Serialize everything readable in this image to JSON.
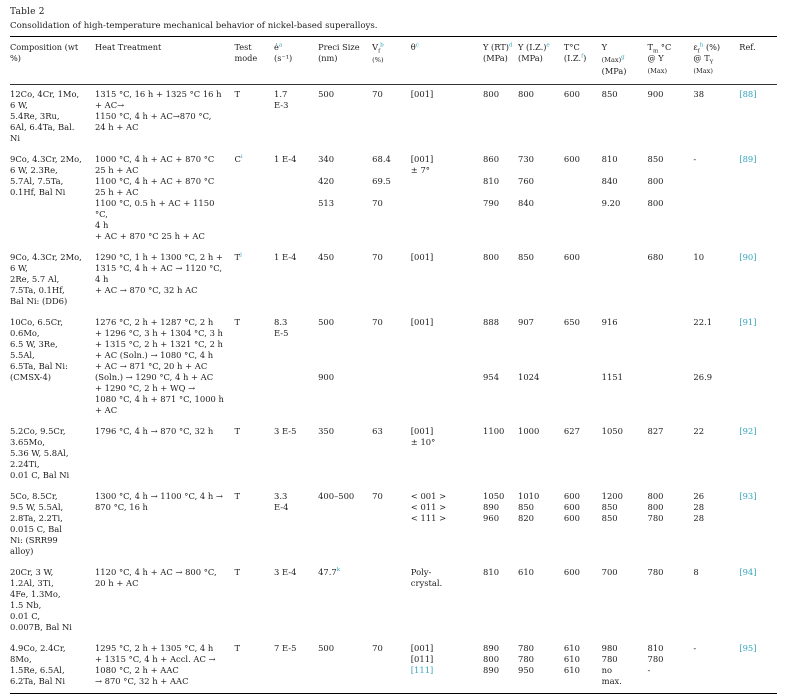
{
  "colors": {
    "link": "#35a5ba",
    "ink": "#1d1d1d"
  },
  "title": "Table 2",
  "caption": "Consolidation of high-temperature mechanical behavior of nickel-based superalloys.",
  "header": {
    "comp": "Composition (wt\n%)",
    "heat": "Heat Treatment",
    "mode": "Test\nmode",
    "rate": {
      "base": "ė",
      "sup": "a",
      "unit": "\n(s⁻¹)"
    },
    "size": "Preci Size\n(nm)",
    "vf": {
      "base": "V",
      "sub": "f",
      "sup": "b",
      "unit": "\n(%)"
    },
    "theta": {
      "base": "θ",
      "sup": "c"
    },
    "y_rt": {
      "base": "Y (RT)",
      "sup": "d",
      "unit": "\n(MPa)"
    },
    "y_iz": {
      "base": "Y (I.Z.)",
      "sup": "e",
      "unit": "\n(MPa)"
    },
    "t_iz": {
      "base": "T°C\n(I.Z.",
      "sup": "f",
      "tail": ")"
    },
    "y_max": {
      "base": "Y",
      "small": "\n(Max)",
      "sup": "g",
      "unit": "\n(MPa)"
    },
    "tm": {
      "base": "T",
      "sub": "m",
      "rest": " °C\n@ Y",
      "small": "\n(Max)"
    },
    "ef": {
      "base": "ε",
      "sub": "f",
      "sup": "h",
      "rest": " (%)",
      "rest2": "\n@ T",
      "sub2": "Y",
      "small": "\n(Max)"
    },
    "ref": "Ref."
  },
  "rows": [
    {
      "comp": "12Co, 4Cr, 1Mo,\n6 W,\n5.4Re, 3Ru,\n6Al, 6.4Ta, Bal.\nNi",
      "heat": "1315 °C, 16 h + 1325 °C 16 h\n+ AC→\n1150 °C, 4 h + AC→870 °C,\n24 h + AC",
      "mode": "T",
      "rate": "1.7\nE-3",
      "size": "500",
      "vf": "70",
      "theta": "[001]",
      "y_rt": "800",
      "y_iz": "800",
      "t_iz": "600",
      "y_max": "850",
      "tm": "900",
      "ef": "38",
      "ref": "[88]"
    },
    {
      "comp": "9Co, 4.3Cr, 2Mo,\n6 W, 2.3Re,\n5.7Al, 7.5Ta,\n0.1Hf, Bal Ni",
      "heat": "1000 °C, 4 h + AC + 870 °C\n25 h + AC\n1100 °C, 4 h + AC + 870 °C\n25 h + AC\n1100 °C, 0.5 h + AC + 1150 °C,\n4 h\n+ AC + 870 °C 25 h + AC",
      "mode": "C",
      "mode_sup": "i",
      "rate": "1 E-4",
      "size": "340\n\n420\n\n513",
      "vf": "68.4\n\n69.5\n\n70",
      "theta": "[001]\n± 7°",
      "y_rt": "860\n\n810\n\n790",
      "y_iz": "730\n\n760\n\n840",
      "t_iz": "600",
      "y_max": "810\n\n840\n\n9.20",
      "tm": "850\n\n800\n\n800",
      "ef": "-",
      "ref": "[89]"
    },
    {
      "comp": "9Co, 4.3Cr, 2Mo,\n6 W,\n2Re, 5.7 Al,\n7.5Ta, 0.1Hf,\nBal Ni: (DD6)",
      "heat": "1290 °C, 1 h + 1300 °C, 2 h +\n1315 °C, 4 h + AC → 1120 °C,\n4 h\n+ AC → 870 °C, 32 h AC",
      "mode": "T",
      "mode_sup": "j",
      "rate": "1 E-4",
      "size": "450",
      "vf": "70",
      "theta": "[001]",
      "y_rt": "800",
      "y_iz": "850",
      "t_iz": "600",
      "y_max": "",
      "tm": "680",
      "ef": "10",
      "ref": "[90]"
    },
    {
      "comp": "10Co, 6.5Cr,\n0.6Mo,\n6.5 W, 3Re,\n5.5Al,\n6.5Ta, Bal Ni:\n(CMSX-4)",
      "heat": "1276 °C, 2 h + 1287 °C, 2 h\n+ 1296 °C, 3 h + 1304 °C, 3 h\n+ 1315 °C, 2 h + 1321 °C, 2 h\n+ AC (Soln.) → 1080 °C, 4 h\n+ AC → 871 °C, 20 h + AC\n(Soln.) → 1290 °C, 4 h + AC\n+ 1290 °C, 2 h + WQ →\n1080 °C, 4 h + 871 °C, 1000 h\n+ AC",
      "mode": "T",
      "rate": "8.3\nE-5",
      "size": "500\n\n\n\n\n900",
      "vf": "70",
      "theta": "[001]",
      "y_rt": "888\n\n\n\n\n954",
      "y_iz": "907\n\n\n\n\n1024",
      "t_iz": "650",
      "y_max": "916\n\n\n\n\n1151",
      "tm": "",
      "ef": "22.1\n\n\n\n\n26.9",
      "ref": "[91]"
    },
    {
      "comp": "5.2Co, 9.5Cr,\n3.65Mo,\n5.36 W, 5.8Al,\n2.24Ti,\n0.01 C, Bal Ni",
      "heat": "1796 °C, 4 h → 870 °C, 32 h",
      "mode": "T",
      "rate": "3 E-5",
      "size": "350",
      "vf": "63",
      "theta": "[001]\n± 10°",
      "y_rt": "1100",
      "y_iz": "1000",
      "t_iz": "627",
      "y_max": "1050",
      "tm": "827",
      "ef": "22",
      "ref": "[92]"
    },
    {
      "comp": "5Co, 8.5Cr,\n9.5 W, 5.5Al,\n2.8Ta, 2.2Ti,\n0.015 C, Bal\nNi: (SRR99\nalloy)",
      "heat": "1300 °C, 4 h → 1100 °C, 4 h →\n870 °C, 16 h",
      "mode": "T",
      "rate": "3.3\nE-4",
      "size": "400–500",
      "vf": "70",
      "theta": "< 001 >\n< 011 >\n< 111 >",
      "y_rt": "1050\n890\n960",
      "y_iz": "1010\n850\n820",
      "t_iz": "600\n600\n600",
      "y_max": "1200\n850\n850",
      "tm": "800\n800\n780",
      "ef": "26\n28\n28",
      "ref": "[93]"
    },
    {
      "comp": "20Cr, 3 W,\n1.2Al, 3Ti,\n4Fe, 1.3Mo,\n1.5 Nb,\n0.01 C,\n0.007B, Bal Ni",
      "heat": "1120 °C, 4 h + AC → 800 °C,\n20 h + AC",
      "mode": "T",
      "rate": "3 E-4",
      "size": "47.7",
      "size_sup": "k",
      "vf": "",
      "theta": "Poly-\ncrystal.",
      "y_rt": "810",
      "y_iz": "610",
      "t_iz": "600",
      "y_max": "700",
      "tm": "780",
      "ef": "8",
      "ref": "[94]"
    },
    {
      "comp": "4.9Co, 2.4Cr,\n8Mo,\n1.5Re, 6.5Al,\n6.2Ta, Bal Ni",
      "heat": "1295 °C, 2 h + 1305 °C, 4 h\n+ 1315 °C, 4 h + Accl. AC →\n1080 °C, 2 h + AAC\n→ 870 °C, 32 h + AAC",
      "mode": "T",
      "rate": "7 E-5",
      "size": "500",
      "vf": "70",
      "theta": "[001]\n[011]",
      "theta_link": "\n[111]",
      "y_rt": "890\n800\n890",
      "y_iz": "780\n780\n950",
      "t_iz": "610\n610\n610",
      "y_max": "980\n780\nno\nmax.",
      "tm": "810\n780\n-",
      "ef": "-",
      "ref": "[95]"
    }
  ]
}
